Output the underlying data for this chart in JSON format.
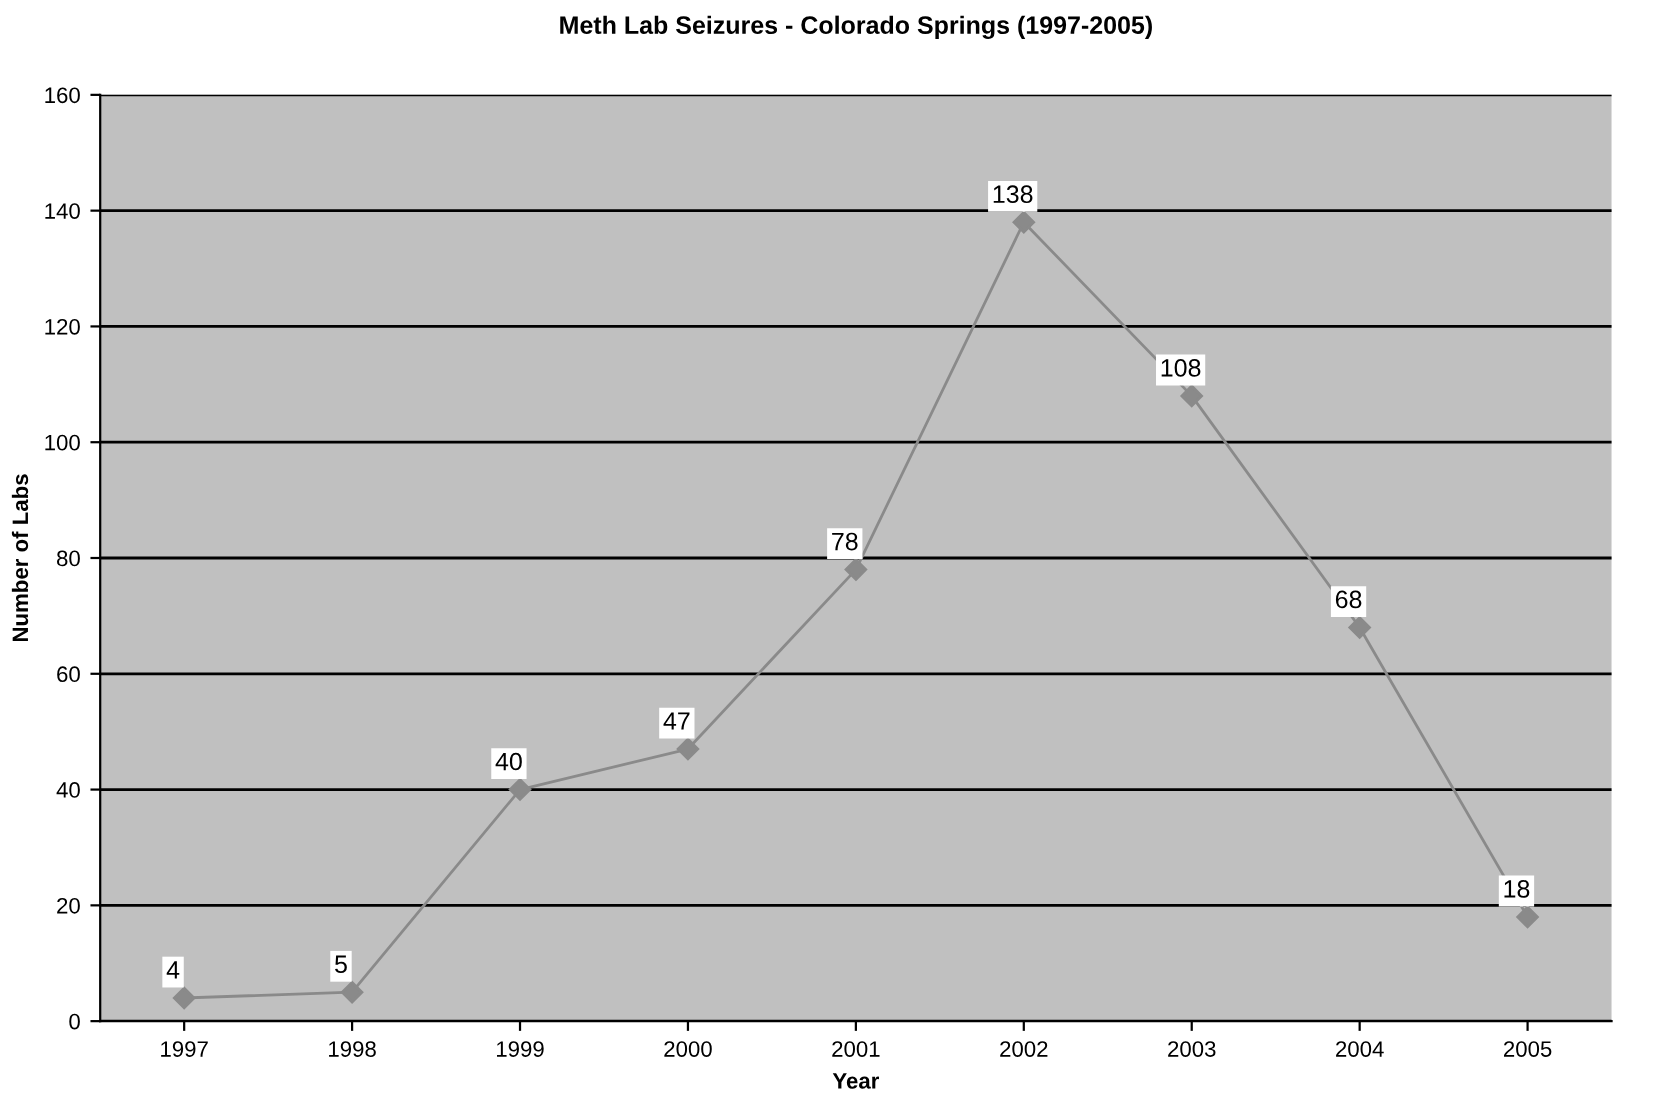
{
  "chart_data": {
    "type": "line",
    "title": "Meth Lab Seizures - Colorado Springs (1997-2005)",
    "xlabel": "Year",
    "ylabel": "Number of Labs",
    "categories": [
      "1997",
      "1998",
      "1999",
      "2000",
      "2001",
      "2002",
      "2003",
      "2004",
      "2005"
    ],
    "series": [
      {
        "color": "#8a8a8a",
        "values": [
          4,
          5,
          40,
          47,
          78,
          138,
          108,
          68,
          18
        ]
      }
    ],
    "ylim": [
      0,
      160
    ],
    "yticks": [
      0,
      20,
      40,
      60,
      80,
      100,
      120,
      140,
      160
    ],
    "grid": "y",
    "marker": "diamond",
    "line_style": "solid",
    "data_labels": true,
    "legend": false
  }
}
